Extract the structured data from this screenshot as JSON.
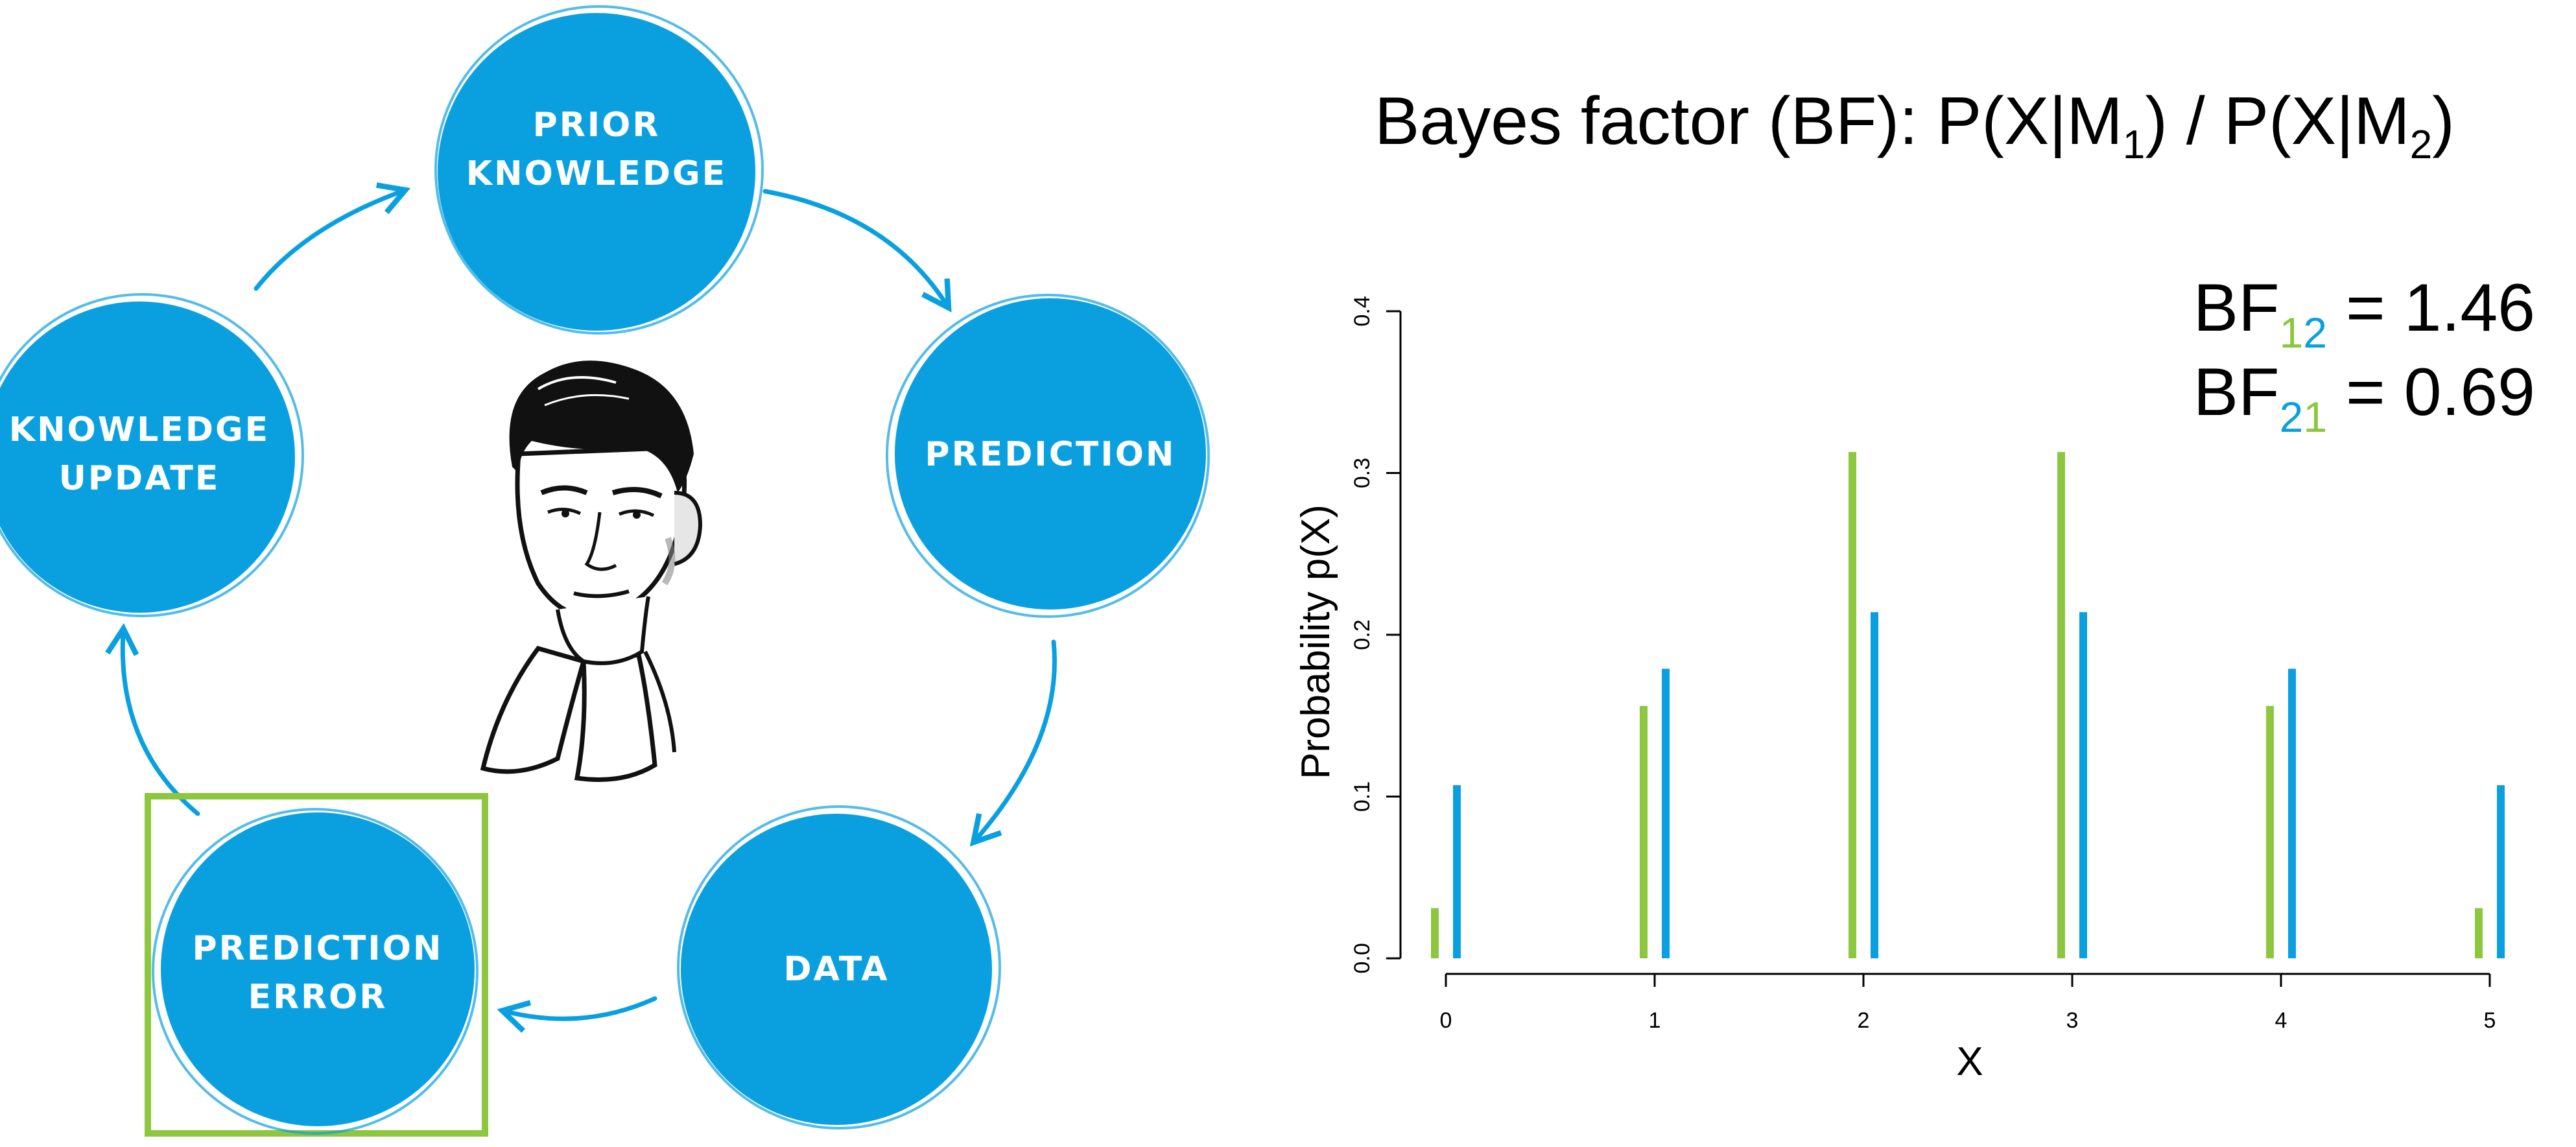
{
  "diagram": {
    "nodes": [
      {
        "id": "prior",
        "lines": [
          "PRIOR",
          "KNOWLEDGE"
        ]
      },
      {
        "id": "prediction",
        "lines": [
          "PREDICTION"
        ]
      },
      {
        "id": "data",
        "lines": [
          "DATA"
        ]
      },
      {
        "id": "prediction-error",
        "lines": [
          "PREDICTION",
          "ERROR"
        ]
      },
      {
        "id": "knowledge-update",
        "lines": [
          "KNOWLEDGE",
          "UPDATE"
        ]
      }
    ],
    "highlighted_node": "prediction-error",
    "colors": {
      "node": "#0aa0df",
      "highlight": "#8dc63f"
    }
  },
  "formula": {
    "main": "Bayes factor (BF): P(X|M",
    "sub1": "1",
    "mid": ") / P(X|M",
    "sub2": "2",
    "end": ")"
  },
  "bf_labels": [
    {
      "prefix": "BF",
      "sub_a": "1",
      "sub_b": "2",
      "sub_a_color": "#8dc63f",
      "sub_b_color": "#0aa0df",
      "value": " = 1.46"
    },
    {
      "prefix": "BF",
      "sub_a": "2",
      "sub_b": "1",
      "sub_a_color": "#0aa0df",
      "sub_b_color": "#8dc63f",
      "value": " = 0.69"
    }
  ],
  "chart_data": {
    "type": "bar",
    "x": [
      "0",
      "1",
      "2",
      "3",
      "4",
      "5"
    ],
    "series": [
      {
        "color": "#8dc63f",
        "values": [
          0.031,
          0.156,
          0.313,
          0.313,
          0.156,
          0.031
        ]
      },
      {
        "color": "#0aa0df",
        "values": [
          0.107,
          0.179,
          0.214,
          0.214,
          0.179,
          0.107
        ]
      }
    ],
    "xlabel": "X",
    "ylabel": "Probability p(X)",
    "ylim": [
      0,
      0.4
    ],
    "yticks": [
      "0.0",
      "0.1",
      "0.2",
      "0.3",
      "0.4"
    ],
    "grid": false
  }
}
